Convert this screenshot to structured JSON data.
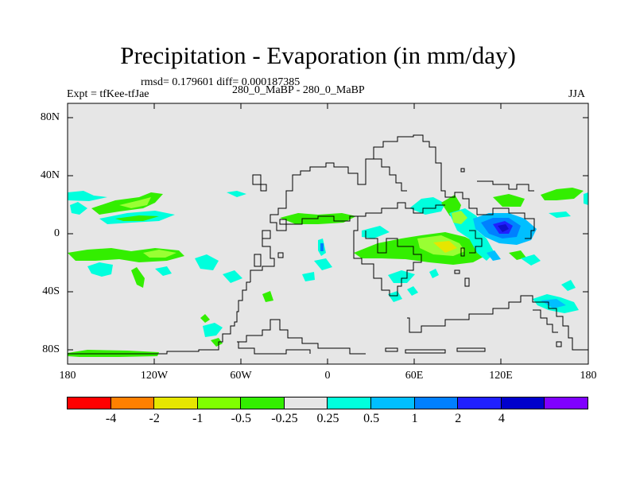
{
  "title": "Precipitation - Evaporation (in mm/day)",
  "stats": "rmsd= 0.179601 diff= 0.000187385",
  "left_label": "Expt = tfKee-tfJae",
  "center_label": "280_0_MaBP - 280_0_MaBP",
  "right_label": "JJA",
  "y_ticks": [
    "80N",
    "40N",
    "0",
    "40S",
    "80S"
  ],
  "x_ticks": [
    "180",
    "120W",
    "60W",
    "0",
    "60E",
    "120E",
    "180"
  ],
  "colorbar": {
    "colors": [
      "#ff0000",
      "#ff8000",
      "#e6e600",
      "#80ff00",
      "#33ee00",
      "#e6e6e6",
      "#00ffdd",
      "#00bfff",
      "#0080ff",
      "#2020ff",
      "#0000cc",
      "#8000ff"
    ],
    "labels": [
      "-4",
      "-2",
      "-1",
      "-0.5",
      "-0.25",
      "0.25",
      "0.5",
      "1",
      "2",
      "4"
    ]
  },
  "map": {
    "background": "#e6e6e6",
    "colors": {
      "green": "#33ee00",
      "lightgreen": "#99ff33",
      "yellow": "#e6e600",
      "cyan": "#00ffdd",
      "skyblue": "#00bfff",
      "blue": "#0060ff",
      "darkblue": "#2020ff"
    }
  }
}
